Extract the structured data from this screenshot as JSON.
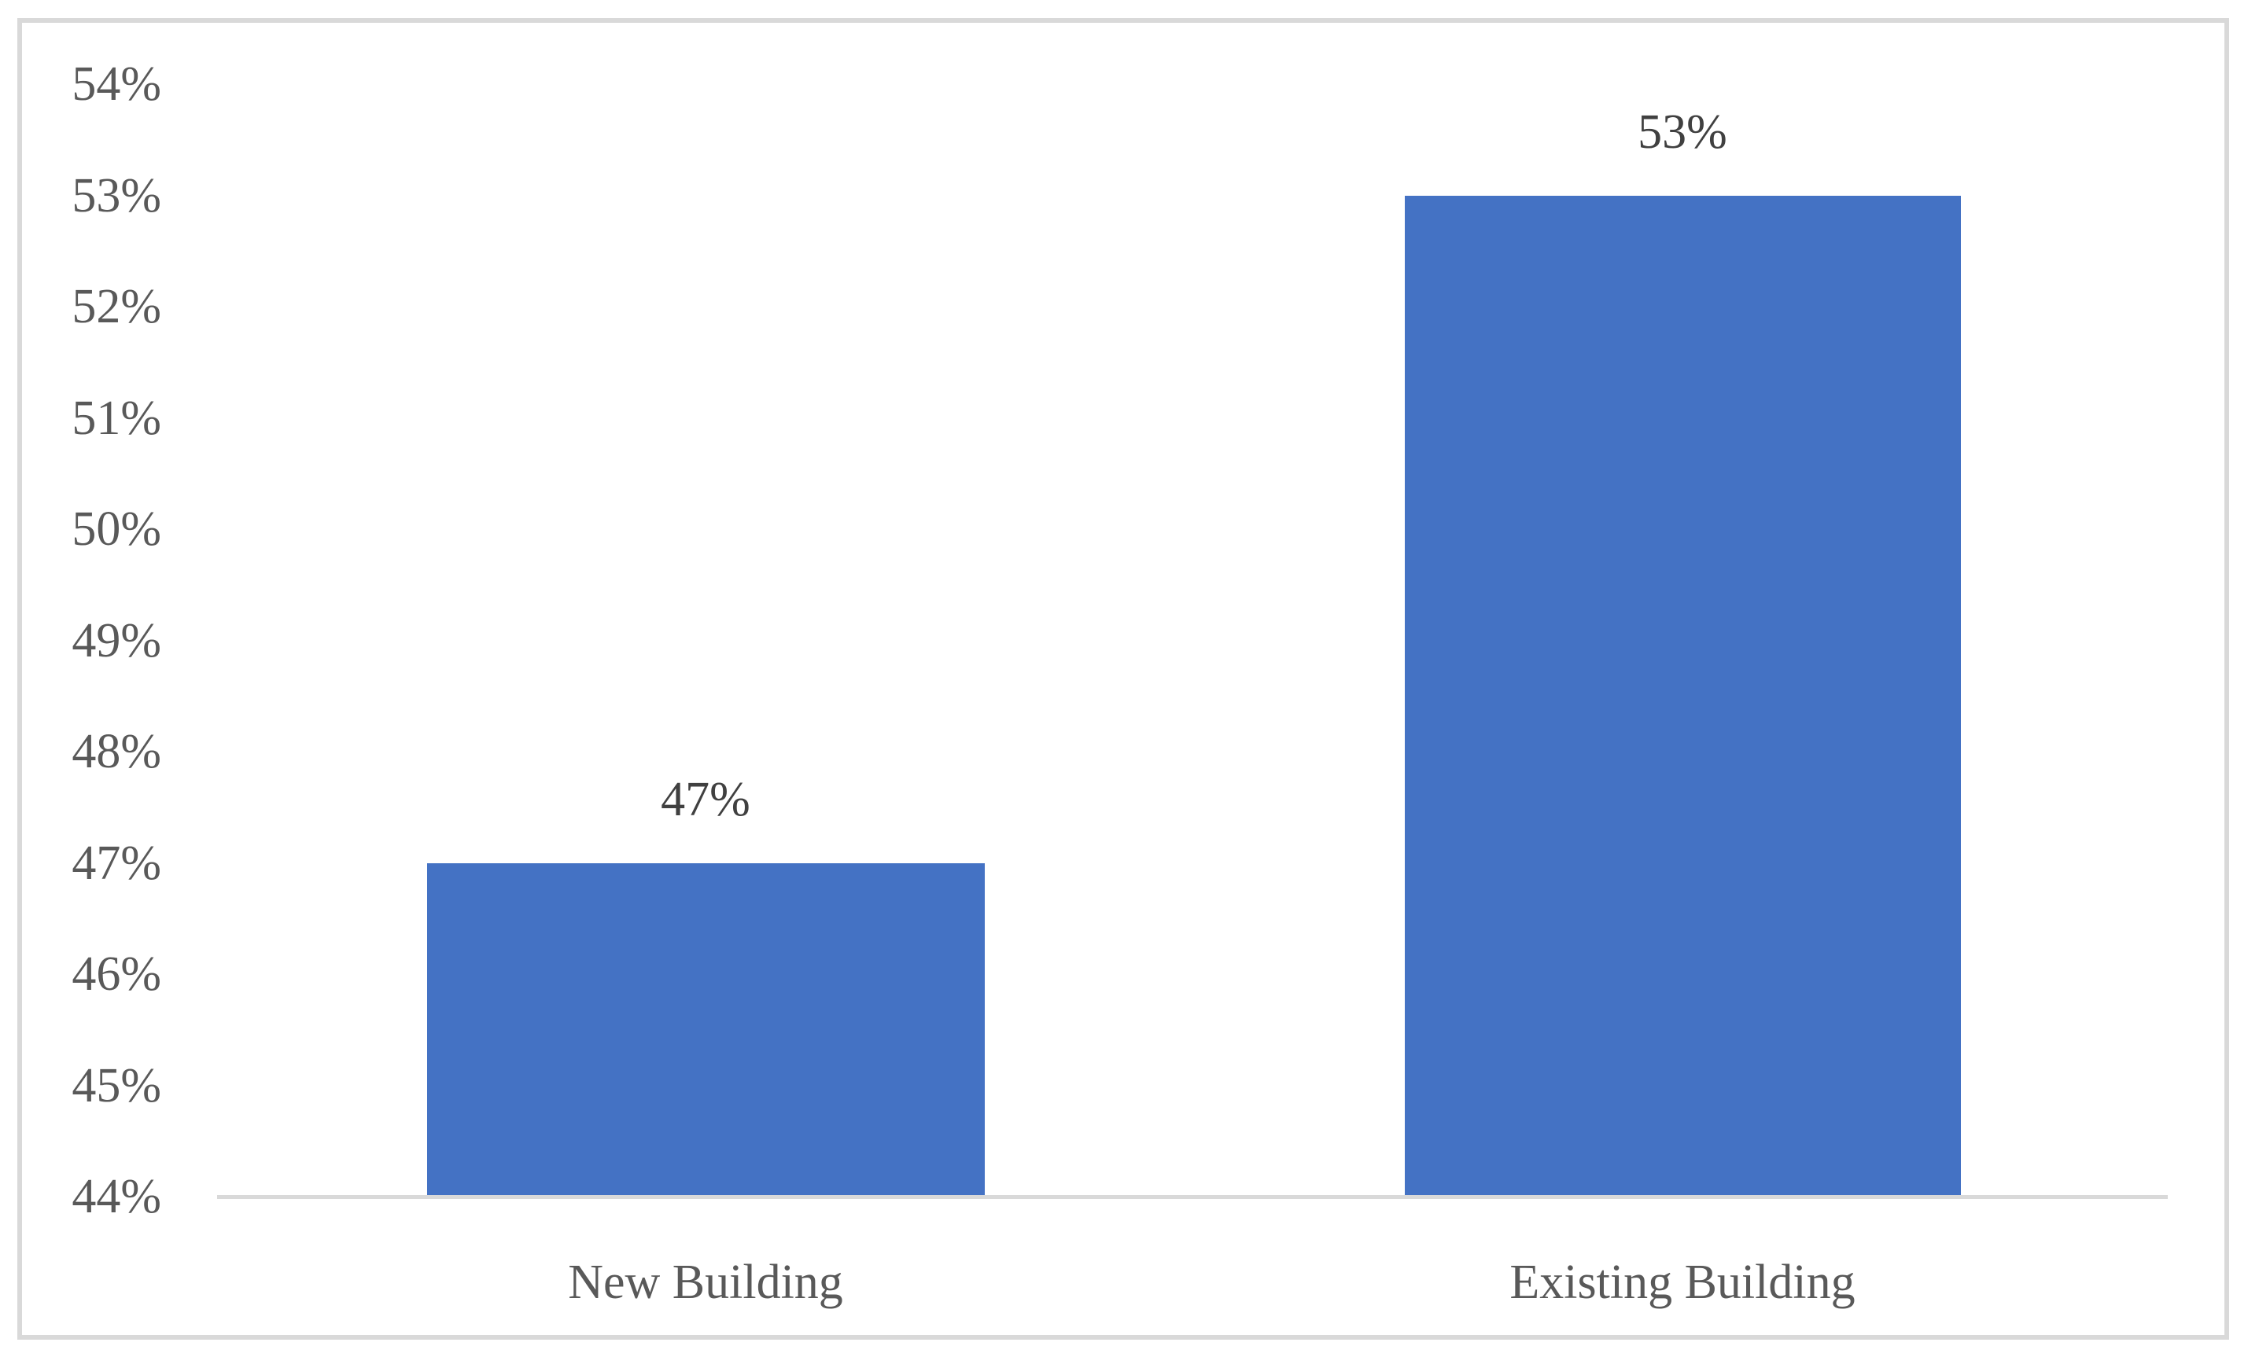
{
  "chart_data": {
    "type": "bar",
    "title": "",
    "xlabel": "",
    "ylabel": "",
    "categories": [
      "New Building",
      "Existing Building"
    ],
    "values": [
      47,
      53
    ],
    "data_labels": [
      "47%",
      "53%"
    ],
    "y_tick_labels": [
      "54%",
      "53%",
      "52%",
      "51%",
      "50%",
      "49%",
      "48%",
      "47%",
      "46%",
      "45%",
      "44%"
    ],
    "ylim": [
      44,
      54
    ],
    "y_tick_step": 1,
    "grid": "off",
    "legend": "none",
    "bar_color": "#4472C4",
    "axis_line_color": "#D9D9D9",
    "frame_border_color": "#D9D9D9",
    "tick_label_color": "#595959",
    "category_label_color": "#595959",
    "data_label_color": "#404040",
    "background_color": "#FFFFFF"
  }
}
